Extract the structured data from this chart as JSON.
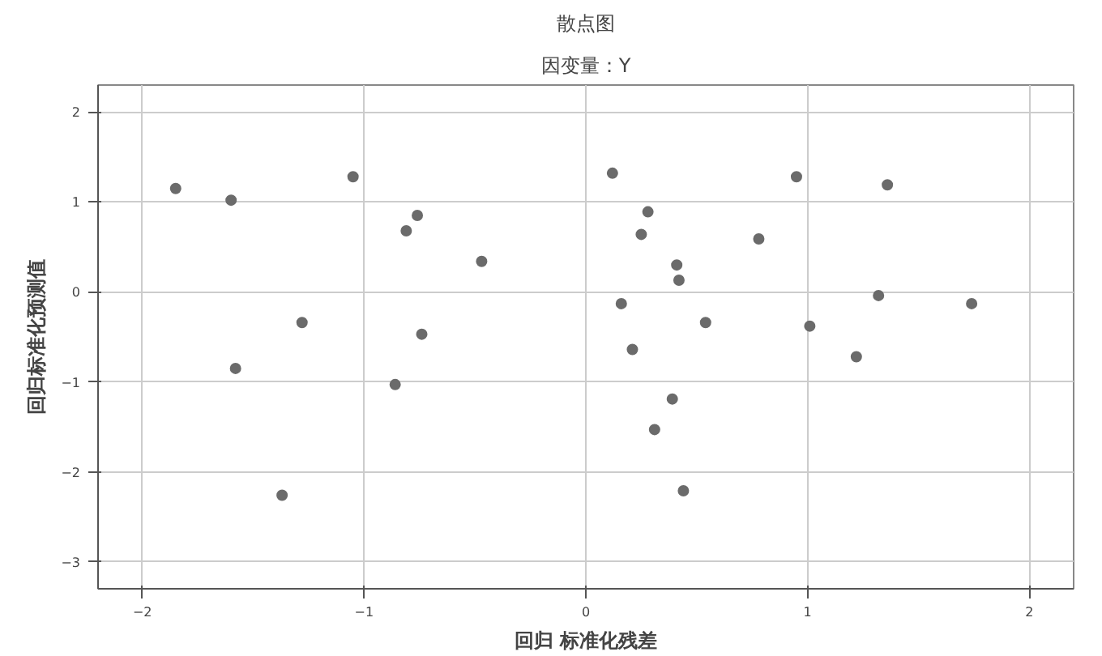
{
  "chart_data": {
    "type": "scatter",
    "title": "散点图",
    "subtitle": "因变量：Y",
    "xlabel": "回归 标准化残差",
    "ylabel": "回归标准化预测值",
    "x": [
      -1.85,
      -1.6,
      -1.05,
      -0.76,
      -0.81,
      -0.47,
      -1.28,
      -0.74,
      -1.58,
      -0.86,
      -1.37,
      0.12,
      0.95,
      1.36,
      0.28,
      0.25,
      0.78,
      0.41,
      0.42,
      0.16,
      1.32,
      1.74,
      0.54,
      1.01,
      0.21,
      1.22,
      0.39,
      0.31,
      0.44
    ],
    "series": [
      {
        "color": "#6b6b6b",
        "values": [
          1.15,
          1.02,
          1.28,
          0.85,
          0.68,
          0.34,
          -0.34,
          -0.47,
          -0.85,
          -1.03,
          -2.26,
          1.32,
          1.28,
          1.19,
          0.89,
          0.64,
          0.59,
          0.3,
          0.13,
          -0.13,
          -0.04,
          -0.13,
          -0.34,
          -0.38,
          -0.64,
          -0.72,
          -1.19,
          -1.53,
          -2.21
        ]
      }
    ],
    "xlim": [
      -2.2,
      2.2
    ],
    "ylim": [
      -3.3,
      2.3
    ],
    "xticks": [
      -2,
      -1,
      0,
      1,
      2
    ],
    "yticks": [
      -3,
      -2,
      -1,
      0,
      1,
      2
    ],
    "grid": true,
    "marker": "circle"
  }
}
